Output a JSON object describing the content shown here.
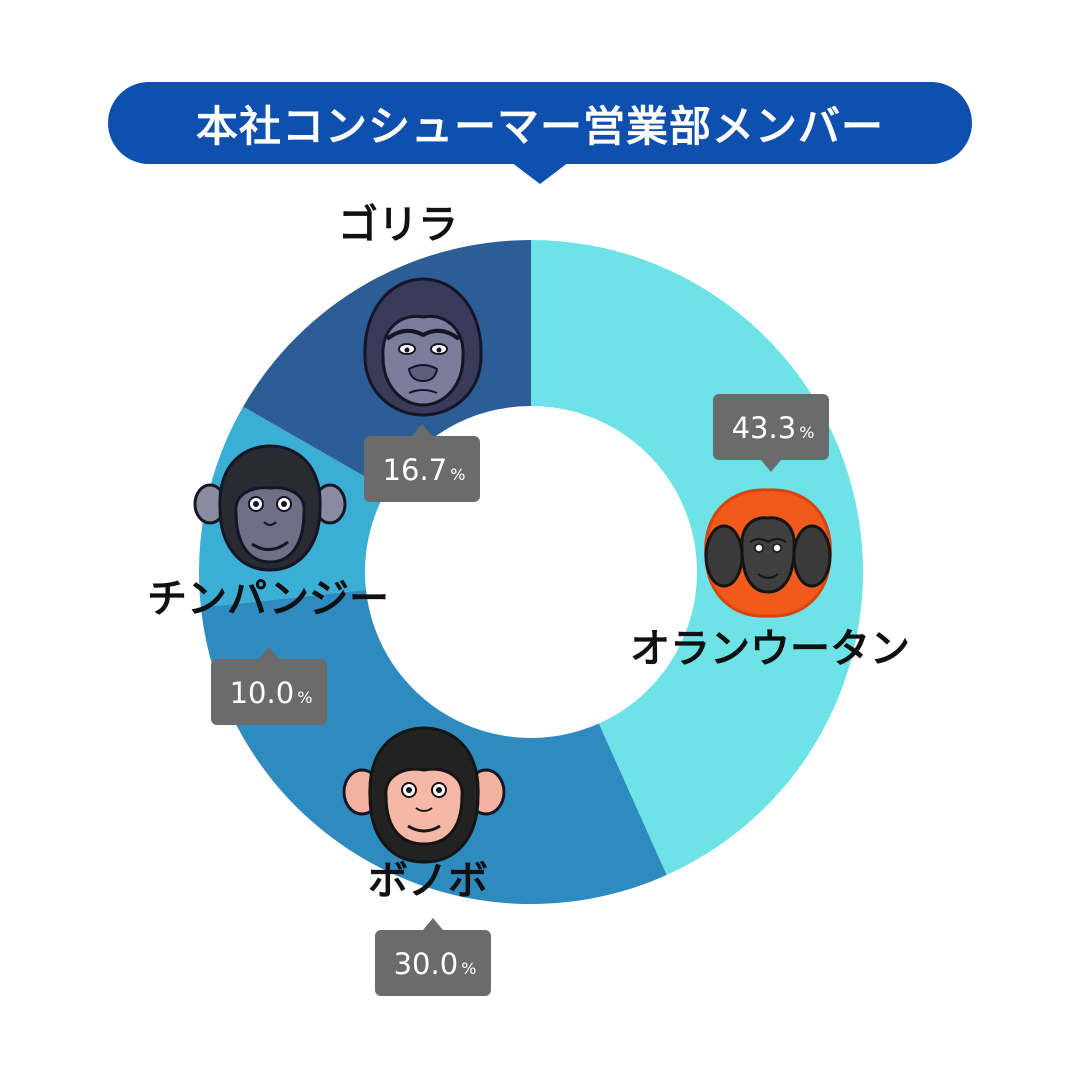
{
  "title": "本社コンシューマー営業部メンバー",
  "colors": {
    "title_bg": "#0f4fae",
    "callout_bg": "#6b6b6b"
  },
  "chart_data": {
    "type": "pie",
    "style": "donut",
    "percent_symbol": "%",
    "slices": [
      {
        "label": "オランウータン",
        "value": 43.3,
        "display": "43.3",
        "color": "#6de3e8",
        "icon": "orangutan-face-icon"
      },
      {
        "label": "ボノボ",
        "value": 30.0,
        "display": "30.0",
        "color": "#2e8bbf",
        "icon": "bonobo-face-icon"
      },
      {
        "label": "チンパンジー",
        "value": 10.0,
        "display": "10.0",
        "color": "#3aaed4",
        "icon": "chimpanzee-face-icon"
      },
      {
        "label": "ゴリラ",
        "value": 16.7,
        "display": "16.7",
        "color": "#2d5d97",
        "icon": "gorilla-face-icon"
      }
    ]
  }
}
